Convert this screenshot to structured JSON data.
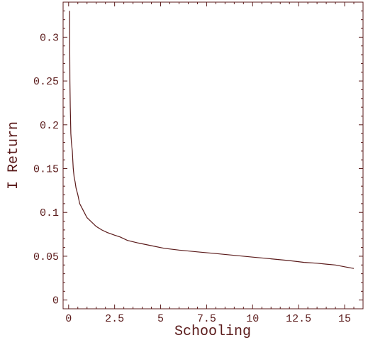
{
  "colors": {
    "line": "#5a1a1a",
    "frame": "#5a1a1a",
    "text": "#5a1a1a",
    "background": "#ffffff"
  },
  "chart_data": {
    "type": "line",
    "title": "",
    "xlabel": "Schooling",
    "ylabel": "I Return",
    "xlim": [
      -0.3,
      16.0
    ],
    "ylim": [
      -0.01,
      0.34
    ],
    "x_ticks": [
      0,
      2.5,
      5,
      7.5,
      10,
      12.5,
      15
    ],
    "x_tick_labels": [
      "0",
      "2.5",
      "5",
      "7.5",
      "10",
      "12.5",
      "15"
    ],
    "y_ticks": [
      0,
      0.05,
      0.1,
      0.15,
      0.2,
      0.25,
      0.3
    ],
    "y_tick_labels": [
      "0",
      "0.05",
      "0.1",
      "0.15",
      "0.2",
      "0.25",
      "0.3"
    ],
    "grid": false,
    "series": [
      {
        "x": [
          0.05,
          0.07,
          0.09,
          0.1,
          0.12,
          0.15,
          0.2,
          0.25,
          0.3,
          0.35,
          0.4,
          0.5,
          0.6,
          0.7,
          0.85,
          1.0,
          1.2,
          1.5,
          1.8,
          2.1,
          2.5,
          2.8,
          3.2,
          3.8,
          4.5,
          5.2,
          6.0,
          7.0,
          8.0,
          9.0,
          10.0,
          11.0,
          12.0,
          12.8,
          13.5,
          14.0,
          14.5,
          15.0,
          15.5
        ],
        "y": [
          0.33,
          0.25,
          0.22,
          0.21,
          0.19,
          0.18,
          0.17,
          0.15,
          0.14,
          0.135,
          0.128,
          0.12,
          0.11,
          0.106,
          0.1,
          0.094,
          0.09,
          0.084,
          0.08,
          0.077,
          0.074,
          0.072,
          0.068,
          0.065,
          0.062,
          0.059,
          0.057,
          0.055,
          0.053,
          0.051,
          0.049,
          0.047,
          0.045,
          0.043,
          0.042,
          0.041,
          0.04,
          0.038,
          0.036
        ]
      }
    ]
  }
}
